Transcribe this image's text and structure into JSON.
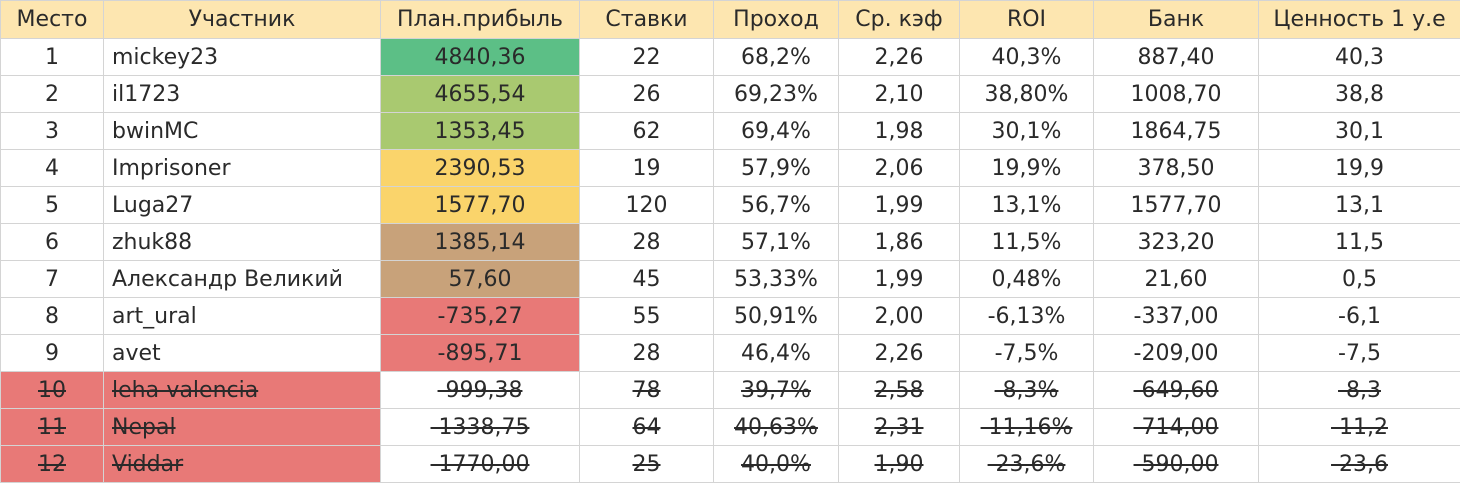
{
  "columns": [
    "Место",
    "Участник",
    "План.прибыль",
    "Ставки",
    "Проход",
    "Ср. кэф",
    "ROI",
    "Банк",
    "Ценность 1 у.е"
  ],
  "colors": {
    "header": "#fde6b0",
    "green": "#5cbf86",
    "light_green": "#a9c970",
    "yellow": "#fad46b",
    "tan": "#c8a27a",
    "red": "#e87977"
  },
  "rows": [
    {
      "place": "1",
      "name": "mickey23",
      "profit": "4840,36",
      "bets": "22",
      "pass": "68,2%",
      "odds": "2,26",
      "roi": "40,3%",
      "bank": "887,40",
      "value": "40,3",
      "profit_color": "green",
      "place_color": "",
      "struck": false
    },
    {
      "place": "2",
      "name": "il1723",
      "profit": "4655,54",
      "bets": "26",
      "pass": "69,23%",
      "odds": "2,10",
      "roi": "38,80%",
      "bank": "1008,70",
      "value": "38,8",
      "profit_color": "light_green",
      "place_color": "",
      "struck": false
    },
    {
      "place": "3",
      "name": "bwinMC",
      "profit": "1353,45",
      "bets": "62",
      "pass": "69,4%",
      "odds": "1,98",
      "roi": "30,1%",
      "bank": "1864,75",
      "value": "30,1",
      "profit_color": "light_green",
      "place_color": "",
      "struck": false
    },
    {
      "place": "4",
      "name": "Imprisoner",
      "profit": "2390,53",
      "bets": "19",
      "pass": "57,9%",
      "odds": "2,06",
      "roi": "19,9%",
      "bank": "378,50",
      "value": "19,9",
      "profit_color": "yellow",
      "place_color": "",
      "struck": false
    },
    {
      "place": "5",
      "name": "Luga27",
      "profit": "1577,70",
      "bets": "120",
      "pass": "56,7%",
      "odds": "1,99",
      "roi": "13,1%",
      "bank": "1577,70",
      "value": "13,1",
      "profit_color": "yellow",
      "place_color": "",
      "struck": false
    },
    {
      "place": "6",
      "name": "zhuk88",
      "profit": "1385,14",
      "bets": "28",
      "pass": "57,1%",
      "odds": "1,86",
      "roi": "11,5%",
      "bank": "323,20",
      "value": "11,5",
      "profit_color": "tan",
      "place_color": "",
      "struck": false
    },
    {
      "place": "7",
      "name": "Александр Великий",
      "profit": "57,60",
      "bets": "45",
      "pass": "53,33%",
      "odds": "1,99",
      "roi": "0,48%",
      "bank": "21,60",
      "value": "0,5",
      "profit_color": "tan",
      "place_color": "",
      "struck": false
    },
    {
      "place": "8",
      "name": "art_ural",
      "profit": "-735,27",
      "bets": "55",
      "pass": "50,91%",
      "odds": "2,00",
      "roi": "-6,13%",
      "bank": "-337,00",
      "value": "-6,1",
      "profit_color": "red",
      "place_color": "",
      "struck": false
    },
    {
      "place": "9",
      "name": "avet",
      "profit": "-895,71",
      "bets": "28",
      "pass": "46,4%",
      "odds": "2,26",
      "roi": "-7,5%",
      "bank": "-209,00",
      "value": "-7,5",
      "profit_color": "red",
      "place_color": "",
      "struck": false
    },
    {
      "place": "10",
      "name": "leha-valencia",
      "profit": "-999,38",
      "bets": "78",
      "pass": "39,7%",
      "odds": "2,58",
      "roi": "-8,3%",
      "bank": "-649,60",
      "value": "-8,3",
      "profit_color": "",
      "place_color": "red",
      "struck": true
    },
    {
      "place": "11",
      "name": "Nepal",
      "profit": "-1338,75",
      "bets": "64",
      "pass": "40,63%",
      "odds": "2,31",
      "roi": "-11,16%",
      "bank": "-714,00",
      "value": "-11,2",
      "profit_color": "",
      "place_color": "red",
      "struck": true
    },
    {
      "place": "12",
      "name": "Viddar",
      "profit": "-1770,00",
      "bets": "25",
      "pass": "40,0%",
      "odds": "1,90",
      "roi": "-23,6%",
      "bank": "-590,00",
      "value": "-23,6",
      "profit_color": "",
      "place_color": "red",
      "struck": true
    }
  ]
}
